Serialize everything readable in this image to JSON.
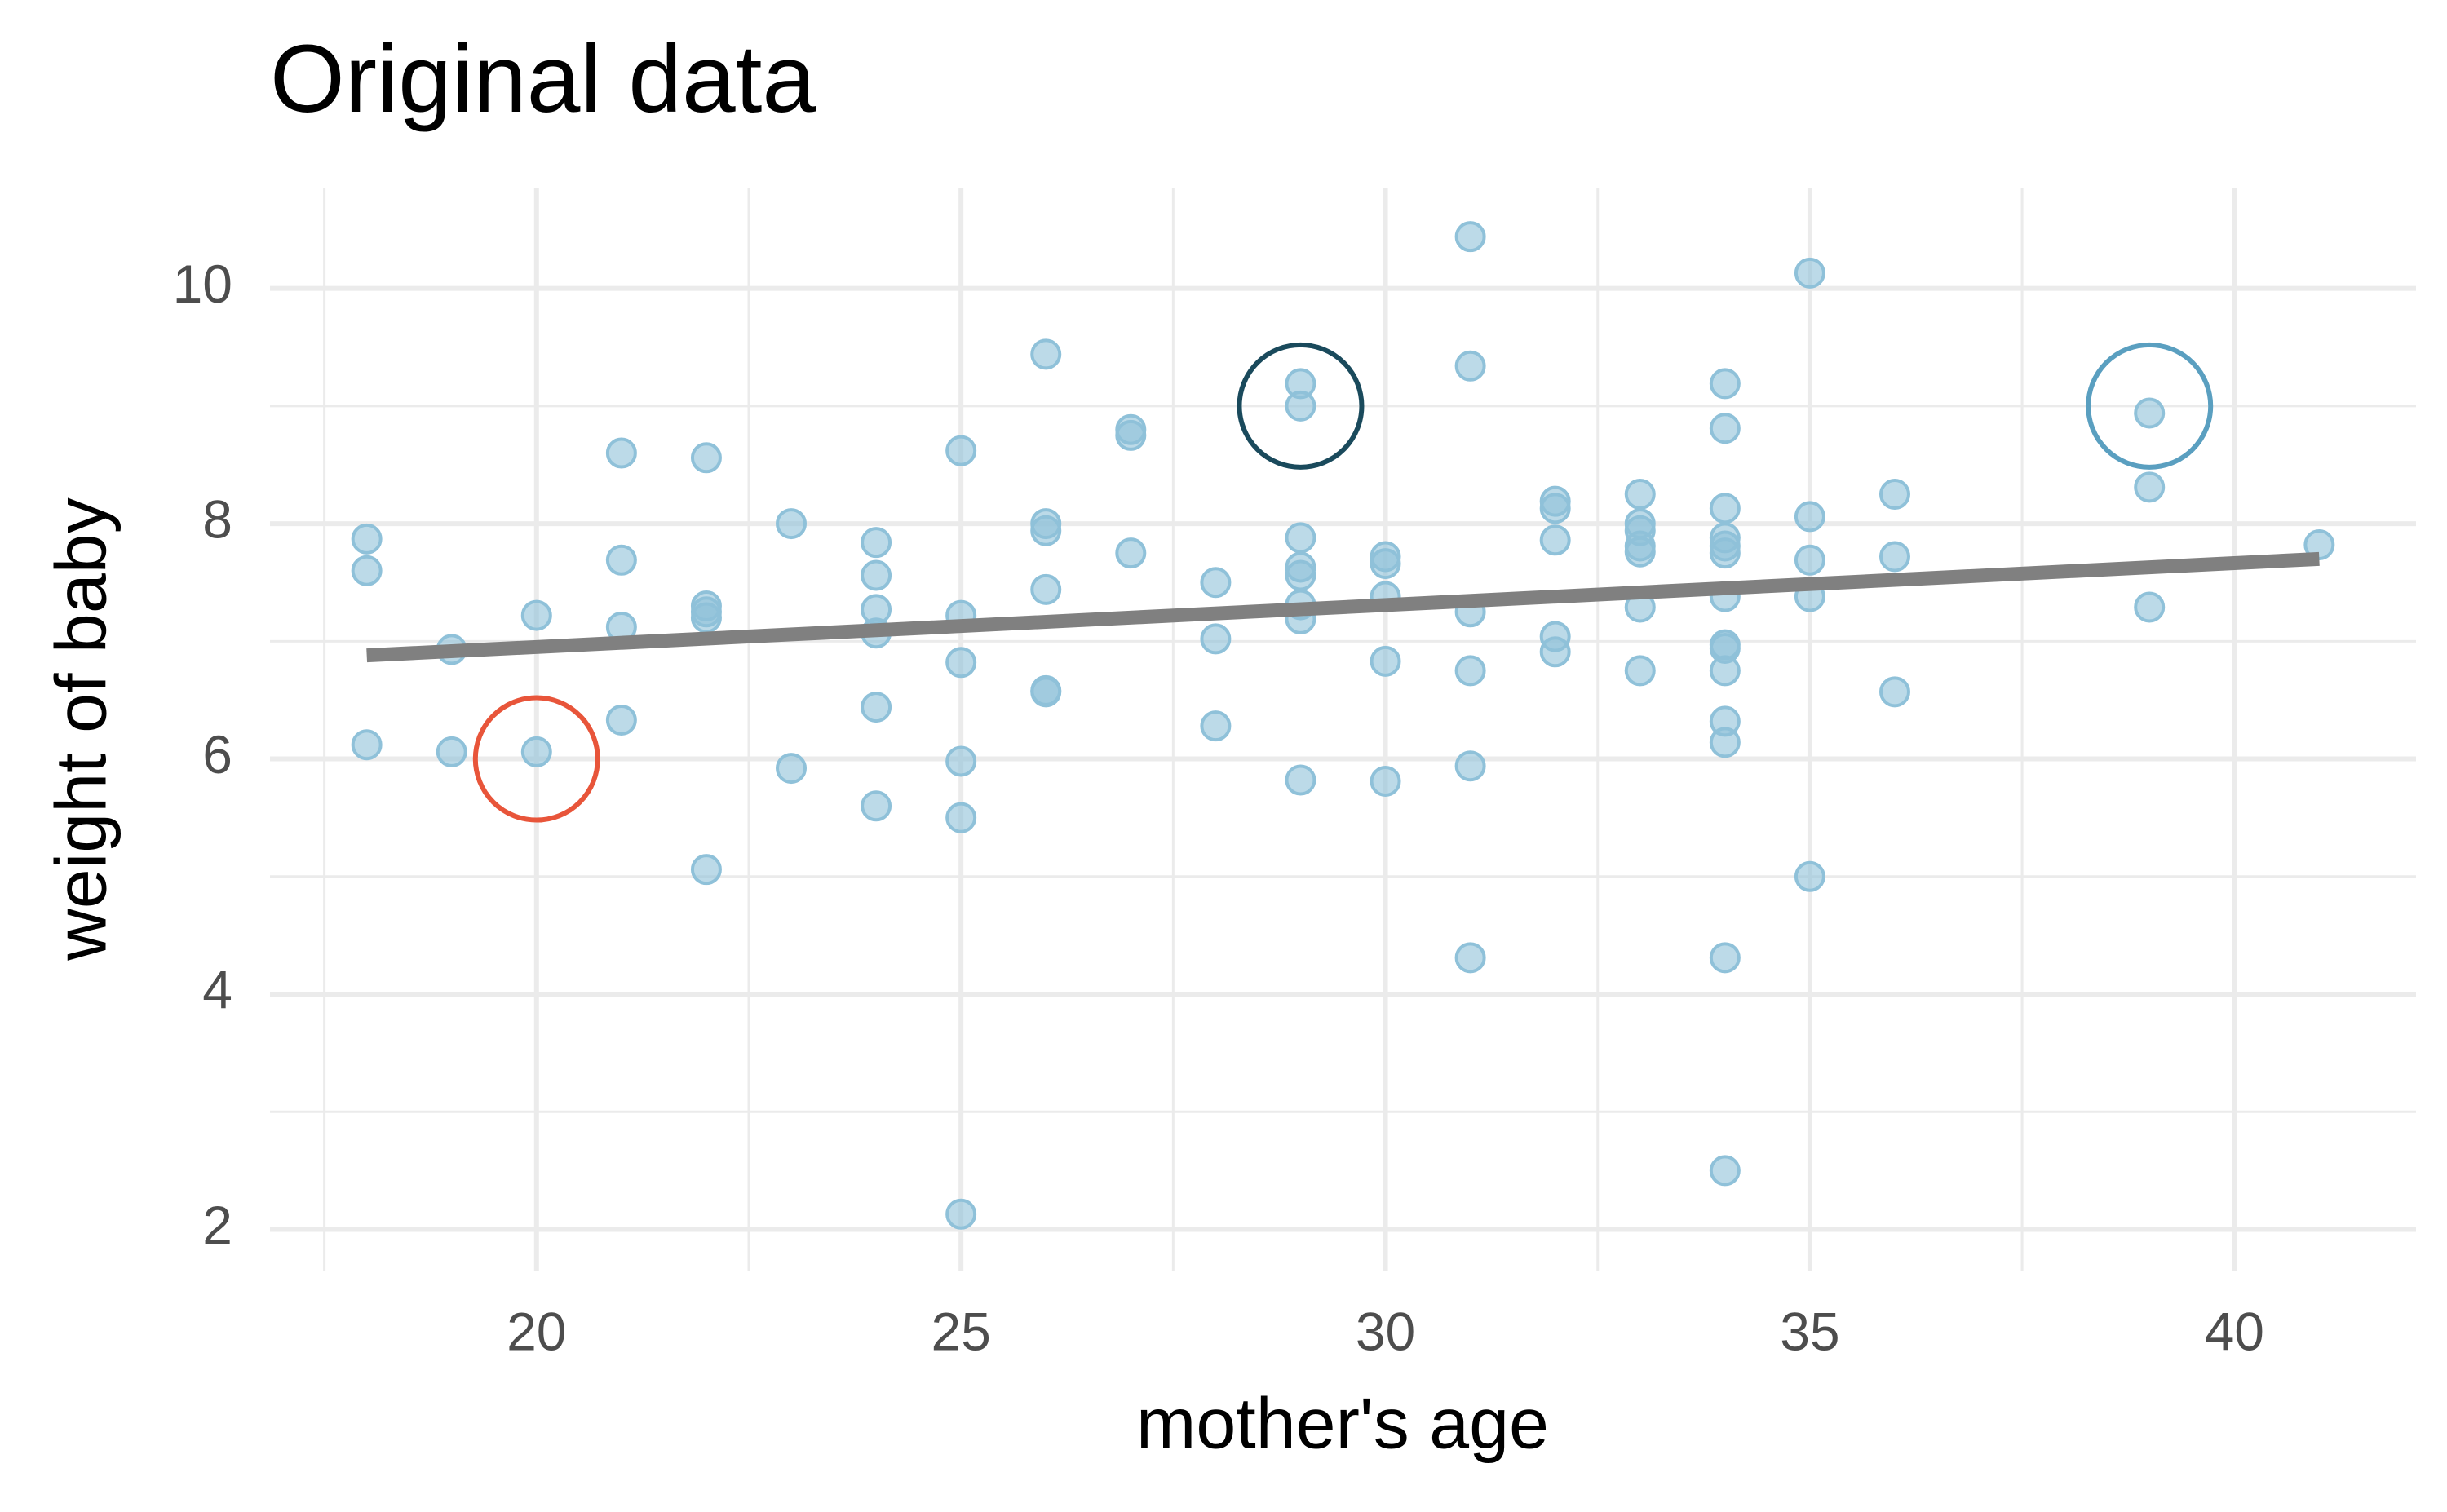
{
  "chart_data": {
    "type": "scatter",
    "title": "Original data",
    "x_label": "mother's age",
    "y_label": "weight of baby",
    "xlim": [
      16.86,
      42.14
    ],
    "ylim": [
      1.65,
      10.85
    ],
    "xticks": [
      20,
      25,
      30,
      35,
      40
    ],
    "yticks": [
      2,
      4,
      6,
      8,
      10
    ],
    "xminorticks": [
      17.5,
      22.5,
      27.5,
      32.5,
      37.5
    ],
    "yminorticks": [
      3,
      5,
      7,
      9
    ],
    "grid": true,
    "points": {
      "color": "#8fc1d9",
      "x": [
        18,
        18,
        18,
        19,
        19,
        20,
        20,
        21,
        21,
        21,
        21,
        22,
        22,
        22,
        22,
        22,
        23,
        23,
        24,
        24,
        24,
        24,
        24,
        24,
        25,
        25,
        25,
        25,
        25,
        25,
        26,
        26,
        26,
        26,
        26,
        26,
        27,
        27,
        27,
        28,
        28,
        28,
        29,
        29,
        29,
        29,
        29,
        29,
        29,
        29,
        30,
        30,
        30,
        30,
        30,
        31,
        31,
        31,
        31,
        31,
        31,
        32,
        32,
        32,
        32,
        32,
        33,
        33,
        33,
        33,
        33,
        33,
        33,
        34,
        34,
        34,
        34,
        34,
        34,
        34,
        34,
        34,
        34,
        34,
        34,
        34,
        34,
        35,
        35,
        35,
        35,
        35,
        36,
        36,
        36,
        39,
        39,
        39,
        41
      ],
      "y": [
        7.87,
        7.6,
        6.12,
        6.93,
        6.06,
        7.22,
        6.06,
        8.6,
        7.69,
        7.12,
        6.33,
        8.56,
        7.3,
        7.25,
        7.2,
        5.06,
        8.0,
        5.92,
        7.84,
        7.56,
        7.27,
        7.07,
        6.44,
        5.6,
        8.62,
        7.22,
        6.82,
        5.98,
        5.5,
        2.13,
        9.44,
        8.0,
        7.94,
        7.44,
        6.58,
        6.57,
        8.8,
        8.75,
        7.75,
        7.5,
        7.02,
        6.28,
        9.19,
        9.0,
        7.88,
        7.63,
        7.56,
        7.31,
        7.19,
        5.82,
        7.72,
        7.66,
        7.38,
        6.83,
        5.81,
        10.44,
        9.34,
        7.25,
        6.75,
        5.94,
        4.31,
        8.19,
        8.13,
        7.86,
        7.04,
        6.91,
        8.25,
        8.0,
        7.94,
        7.81,
        7.76,
        7.29,
        6.75,
        9.19,
        8.81,
        8.13,
        7.88,
        7.81,
        7.75,
        7.38,
        6.97,
        6.94,
        6.75,
        6.32,
        6.14,
        4.31,
        2.5,
        10.13,
        8.06,
        7.69,
        7.38,
        5.0,
        8.25,
        7.72,
        6.57,
        8.94,
        8.31,
        7.29,
        7.82
      ]
    },
    "fit_line": {
      "color": "#808080",
      "x": [
        18,
        41
      ],
      "values": [
        6.88,
        7.7
      ]
    },
    "highlights": [
      {
        "x": 20,
        "y": 6,
        "color": "#e8553a"
      },
      {
        "x": 29,
        "y": 9,
        "color": "#1a4a5c"
      },
      {
        "x": 39,
        "y": 9,
        "color": "#5a9fc0"
      }
    ]
  }
}
